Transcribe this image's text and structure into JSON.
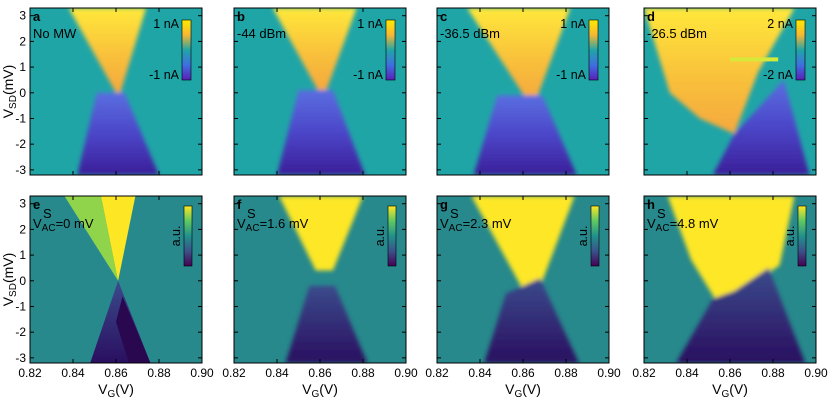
{
  "chart_data": [
    {
      "type": "heatmap",
      "panel": "a",
      "annotation": "No MW",
      "colorbar": {
        "max_label": "1 nA",
        "min_label": "-1 nA"
      }
    },
    {
      "type": "heatmap",
      "panel": "b",
      "annotation": "-44 dBm",
      "colorbar": {
        "max_label": "1 nA",
        "min_label": "-1 nA"
      }
    },
    {
      "type": "heatmap",
      "panel": "c",
      "annotation": "-36.5 dBm",
      "colorbar": {
        "max_label": "1 nA",
        "min_label": "-1 nA"
      }
    },
    {
      "type": "heatmap",
      "panel": "d",
      "annotation": "-26.5 dBm",
      "colorbar": {
        "max_label": "2 nA",
        "min_label": "-2 nA"
      }
    },
    {
      "type": "heatmap",
      "panel": "e",
      "annotation": {
        "base": "V",
        "sup": "S",
        "sub": "AC",
        "rest": "=0 mV"
      },
      "colorbar": {
        "label": "a.u."
      }
    },
    {
      "type": "heatmap",
      "panel": "f",
      "annotation": {
        "base": "V",
        "sup": "S",
        "sub": "AC",
        "rest": "=1.6 mV"
      },
      "colorbar": {
        "label": "a.u."
      }
    },
    {
      "type": "heatmap",
      "panel": "g",
      "annotation": {
        "base": "V",
        "sup": "S",
        "sub": "AC",
        "rest": "=2.3 mV"
      },
      "colorbar": {
        "label": "a.u."
      }
    },
    {
      "type": "heatmap",
      "panel": "h",
      "annotation": {
        "base": "V",
        "sup": "S",
        "sub": "AC",
        "rest": "=4.8 mV"
      },
      "colorbar": {
        "label": "a.u."
      }
    }
  ],
  "axes": {
    "x_ticks": [
      "0.82",
      "0.84",
      "0.86",
      "0.88",
      "0.90"
    ],
    "x_values": [
      0.82,
      0.84,
      0.86,
      0.88,
      0.9
    ],
    "xlim": [
      0.82,
      0.9
    ],
    "y_ticks": [
      "3",
      "2",
      "1",
      "0",
      "-1",
      "-2",
      "-3"
    ],
    "y_values": [
      3,
      2,
      1,
      0,
      -1,
      -2,
      -3
    ],
    "ylim": [
      -3.2,
      3.3
    ],
    "xlabel": {
      "base": "V",
      "sub": "G",
      "rest": "(V)"
    },
    "ylabel": {
      "base": "V",
      "sub": "SD",
      "rest": "(mV)"
    }
  },
  "colors": {
    "teal": "#20a5a7",
    "teal_sim": "#27898c",
    "yellow": "#fde725",
    "orange": "#fdb034",
    "blue": "#4a5fd6",
    "purple": "#3b2a8f",
    "dark": "#440154"
  }
}
